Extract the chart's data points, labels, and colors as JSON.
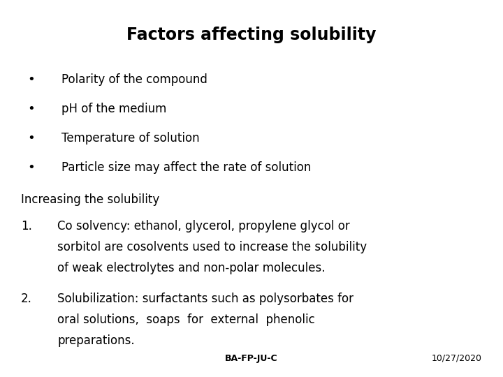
{
  "title": "Factors affecting solubility",
  "background_color": "#ffffff",
  "text_color": "#000000",
  "title_fontsize": 17,
  "body_fontsize": 12,
  "footer_fontsize": 9,
  "footer_center": "BA-FP-JU-C",
  "footer_right": "10/27/2020",
  "bullets": [
    "Polarity of the compound",
    "pH of the medium",
    "Temperature of solution",
    "Particle size may affect the rate of solution"
  ],
  "section_heading": "Increasing the solubility",
  "numbered_items": [
    [
      "Co solvency: ethanol, glycerol, propylene glycol or",
      "sorbitol are cosolvents used to increase the solubility",
      "of weak electrolytes and non-polar molecules."
    ],
    [
      "Solubilization: surfactants such as polysorbates for",
      "oral solutions,  soaps  for  external  phenolic",
      "preparations."
    ]
  ]
}
